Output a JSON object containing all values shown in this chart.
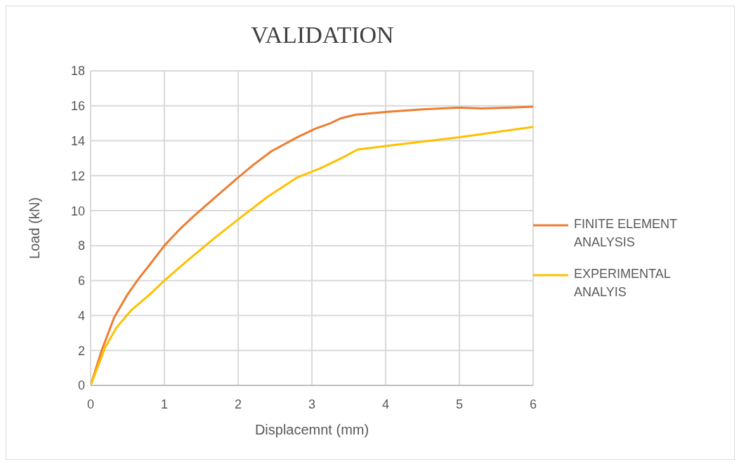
{
  "chart_data": {
    "type": "line",
    "title": "VALIDATION",
    "xlabel": "Displacemnt (mm)",
    "ylabel": "Load (kN)",
    "xlim": [
      0,
      6
    ],
    "xticks": [
      0,
      1,
      2,
      3,
      4,
      5,
      6
    ],
    "ylim": [
      0,
      18
    ],
    "yticks": [
      0,
      2,
      4,
      6,
      8,
      10,
      12,
      14,
      16,
      18
    ],
    "grid": true,
    "legend": "right",
    "marker": "none",
    "line_style": "solid",
    "series": [
      {
        "name": "FINITE ELEMENT ANALYSIS",
        "color": "#ed7d31",
        "x": [
          0,
          0.15,
          0.32,
          0.5,
          0.65,
          0.8,
          1,
          1.2,
          1.4,
          1.7,
          2,
          2.2,
          2.45,
          2.8,
          3.05,
          3.25,
          3.4,
          3.6,
          4,
          4.5,
          5,
          5.3,
          5.7,
          6
        ],
        "values": [
          0,
          2,
          3.9,
          5.2,
          6.1,
          6.9,
          8,
          8.9,
          9.7,
          10.8,
          11.9,
          12.6,
          13.4,
          14.2,
          14.7,
          15,
          15.3,
          15.5,
          15.65,
          15.8,
          15.9,
          15.85,
          15.9,
          15.95
        ]
      },
      {
        "name": "EXPERIMENTAL ANALYIS",
        "color": "#ffc000",
        "x": [
          0,
          0.2,
          0.35,
          0.55,
          0.8,
          1,
          1.3,
          1.7,
          2,
          2.4,
          2.8,
          3.1,
          3.4,
          3.62,
          4,
          5,
          6
        ],
        "values": [
          0,
          2.2,
          3.3,
          4.3,
          5.2,
          6,
          7.1,
          8.5,
          9.5,
          10.8,
          11.9,
          12.4,
          13,
          13.5,
          13.7,
          14.2,
          14.8
        ]
      }
    ]
  }
}
